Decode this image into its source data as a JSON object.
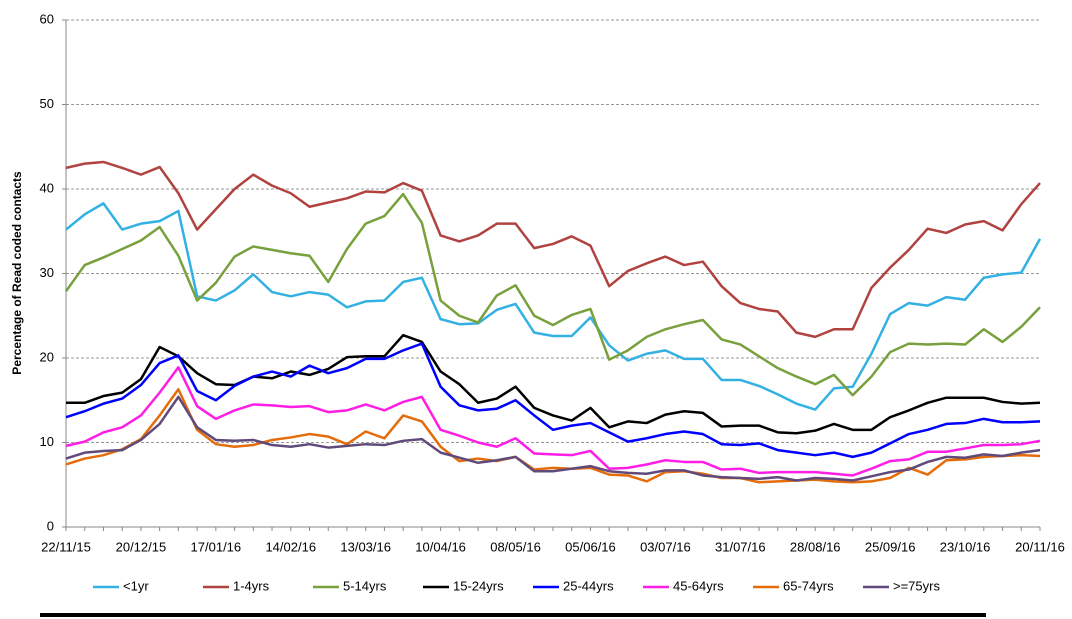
{
  "chart_data": {
    "type": "line",
    "y_label": "Percentage of Read coded contacts",
    "categories": [
      "22/11/15",
      null,
      null,
      null,
      "20/12/15",
      null,
      null,
      null,
      "17/01/16",
      null,
      null,
      null,
      "14/02/16",
      null,
      null,
      null,
      "13/03/16",
      null,
      null,
      null,
      "10/04/16",
      null,
      null,
      null,
      "08/05/16",
      null,
      null,
      null,
      "05/06/16",
      null,
      null,
      null,
      "03/07/16",
      null,
      null,
      null,
      "31/07/16",
      null,
      null,
      null,
      "28/08/16",
      null,
      null,
      null,
      "25/09/16",
      null,
      null,
      null,
      "23/10/16",
      null,
      null,
      null,
      "20/11/16"
    ],
    "ylim": [
      0,
      60
    ],
    "yticks": [
      0,
      10,
      20,
      30,
      40,
      50,
      60
    ],
    "grid": true,
    "legend": "bottom",
    "series": [
      {
        "name": "<1yr",
        "color": "#33b1e2",
        "values": [
          35.2,
          37,
          38.3,
          35.2,
          35.9,
          36.2,
          37.4,
          27.3,
          26.8,
          28,
          29.9,
          27.8,
          27.3,
          27.8,
          27.5,
          26,
          26.7,
          26.8,
          29,
          29.5,
          24.6,
          24,
          24.1,
          25.7,
          26.4,
          23,
          22.6,
          22.6,
          24.8,
          21.5,
          19.7,
          20.5,
          20.9,
          19.9,
          19.9,
          17.4,
          17.4,
          16.7,
          15.7,
          14.6,
          13.9,
          16.4,
          16.6,
          20.5,
          25.2,
          26.5,
          26.2,
          27.2,
          26.9,
          29.5,
          29.9,
          30.1,
          34.1
        ]
      },
      {
        "name": "1-4yrs",
        "color": "#b0433f",
        "values": [
          42.5,
          43,
          43.2,
          42.5,
          41.7,
          42.6,
          39.5,
          35.2,
          37.6,
          40,
          41.7,
          40.4,
          39.5,
          37.9,
          38.4,
          38.9,
          39.7,
          39.6,
          40.7,
          39.8,
          34.5,
          33.8,
          34.5,
          35.9,
          35.9,
          33,
          33.5,
          34.4,
          33.3,
          28.5,
          30.3,
          31.2,
          32,
          31,
          31.4,
          28.5,
          26.5,
          25.8,
          25.5,
          23,
          22.5,
          23.4,
          23.4,
          28.3,
          30.7,
          32.8,
          35.3,
          34.8,
          35.8,
          36.2,
          35.1,
          38.2,
          40.7
        ]
      },
      {
        "name": "5-14yrs",
        "color": "#78a03c",
        "values": [
          27.9,
          31,
          31.9,
          32.9,
          33.9,
          35.5,
          32.1,
          26.8,
          28.9,
          32,
          33.2,
          32.8,
          32.4,
          32.1,
          29,
          32.9,
          35.9,
          36.8,
          39.4,
          36,
          26.8,
          25,
          24.2,
          27.4,
          28.6,
          25,
          23.9,
          25.1,
          25.8,
          19.8,
          20.9,
          22.5,
          23.4,
          24,
          24.5,
          22.2,
          21.6,
          20.2,
          18.8,
          17.8,
          16.9,
          18,
          15.6,
          17.8,
          20.7,
          21.7,
          21.6,
          21.7,
          21.6,
          23.4,
          21.9,
          23.7,
          26
        ]
      },
      {
        "name": "15-24yrs",
        "color": "#000000",
        "values": [
          14.7,
          14.7,
          15.5,
          15.9,
          17.5,
          21.3,
          20.2,
          18.2,
          16.9,
          16.8,
          17.8,
          17.6,
          18.4,
          18,
          18.7,
          20.1,
          20.2,
          20.2,
          22.7,
          21.9,
          18.4,
          16.9,
          14.7,
          15.2,
          16.6,
          14.1,
          13.2,
          12.6,
          14.1,
          11.8,
          12.5,
          12.3,
          13.3,
          13.7,
          13.5,
          11.9,
          12,
          12,
          11.2,
          11.1,
          11.4,
          12.2,
          11.5,
          11.5,
          13,
          13.8,
          14.7,
          15.3,
          15.3,
          15.3,
          14.8,
          14.6,
          14.7
        ]
      },
      {
        "name": "25-44yrs",
        "color": "#0000ff",
        "values": [
          13,
          13.7,
          14.6,
          15.2,
          16.8,
          19.4,
          20.3,
          16.1,
          15,
          16.7,
          17.8,
          18.4,
          17.8,
          19.1,
          18.2,
          18.8,
          19.9,
          19.9,
          20.9,
          21.7,
          16.6,
          14.4,
          13.8,
          14,
          15,
          13.2,
          11.5,
          12,
          12.3,
          11.2,
          10.1,
          10.5,
          11,
          11.3,
          11,
          9.8,
          9.7,
          9.9,
          9.1,
          8.8,
          8.5,
          8.8,
          8.3,
          8.8,
          9.9,
          11,
          11.5,
          12.2,
          12.3,
          12.8,
          12.4,
          12.4,
          12.5
        ]
      },
      {
        "name": "45-64yrs",
        "color": "#ff1ee6",
        "values": [
          9.6,
          10.1,
          11.2,
          11.8,
          13.2,
          15.9,
          18.9,
          14.3,
          12.8,
          13.8,
          14.5,
          14.4,
          14.2,
          14.3,
          13.6,
          13.8,
          14.5,
          13.8,
          14.8,
          15.4,
          11.5,
          10.8,
          10,
          9.5,
          10.5,
          8.7,
          8.6,
          8.5,
          9,
          6.9,
          7,
          7.4,
          7.9,
          7.7,
          7.7,
          6.8,
          6.9,
          6.4,
          6.5,
          6.5,
          6.5,
          6.3,
          6.1,
          6.9,
          7.8,
          8,
          8.9,
          8.9,
          9.3,
          9.7,
          9.7,
          9.8,
          10.2
        ]
      },
      {
        "name": "65-74yrs",
        "color": "#e46c0a",
        "values": [
          7.4,
          8.1,
          8.5,
          9.2,
          10.4,
          13.2,
          16.3,
          11.5,
          9.8,
          9.5,
          9.7,
          10.3,
          10.6,
          11,
          10.7,
          9.8,
          11.3,
          10.5,
          13.2,
          12.5,
          9.5,
          7.8,
          8.1,
          7.8,
          8.3,
          6.8,
          7,
          6.9,
          7,
          6.2,
          6.1,
          5.4,
          6.5,
          6.6,
          6.3,
          5.8,
          5.8,
          5.3,
          5.4,
          5.5,
          5.6,
          5.4,
          5.3,
          5.4,
          5.8,
          7,
          6.2,
          7.9,
          8,
          8.3,
          8.4,
          8.5,
          8.4
        ]
      },
      {
        "name": ">=75yrs",
        "color": "#604a7b",
        "values": [
          8.1,
          8.8,
          9,
          9.1,
          10.3,
          12.2,
          15.4,
          11.8,
          10.3,
          10.2,
          10.3,
          9.7,
          9.5,
          9.8,
          9.4,
          9.6,
          9.8,
          9.7,
          10.2,
          10.4,
          8.8,
          8.2,
          7.6,
          7.9,
          8.3,
          6.6,
          6.6,
          6.9,
          7.2,
          6.6,
          6.4,
          6.3,
          6.7,
          6.7,
          6.1,
          5.9,
          5.8,
          5.7,
          5.9,
          5.5,
          5.8,
          5.7,
          5.5,
          6,
          6.5,
          6.8,
          7.7,
          8.3,
          8.2,
          8.6,
          8.4,
          8.8,
          9.1
        ]
      }
    ]
  }
}
